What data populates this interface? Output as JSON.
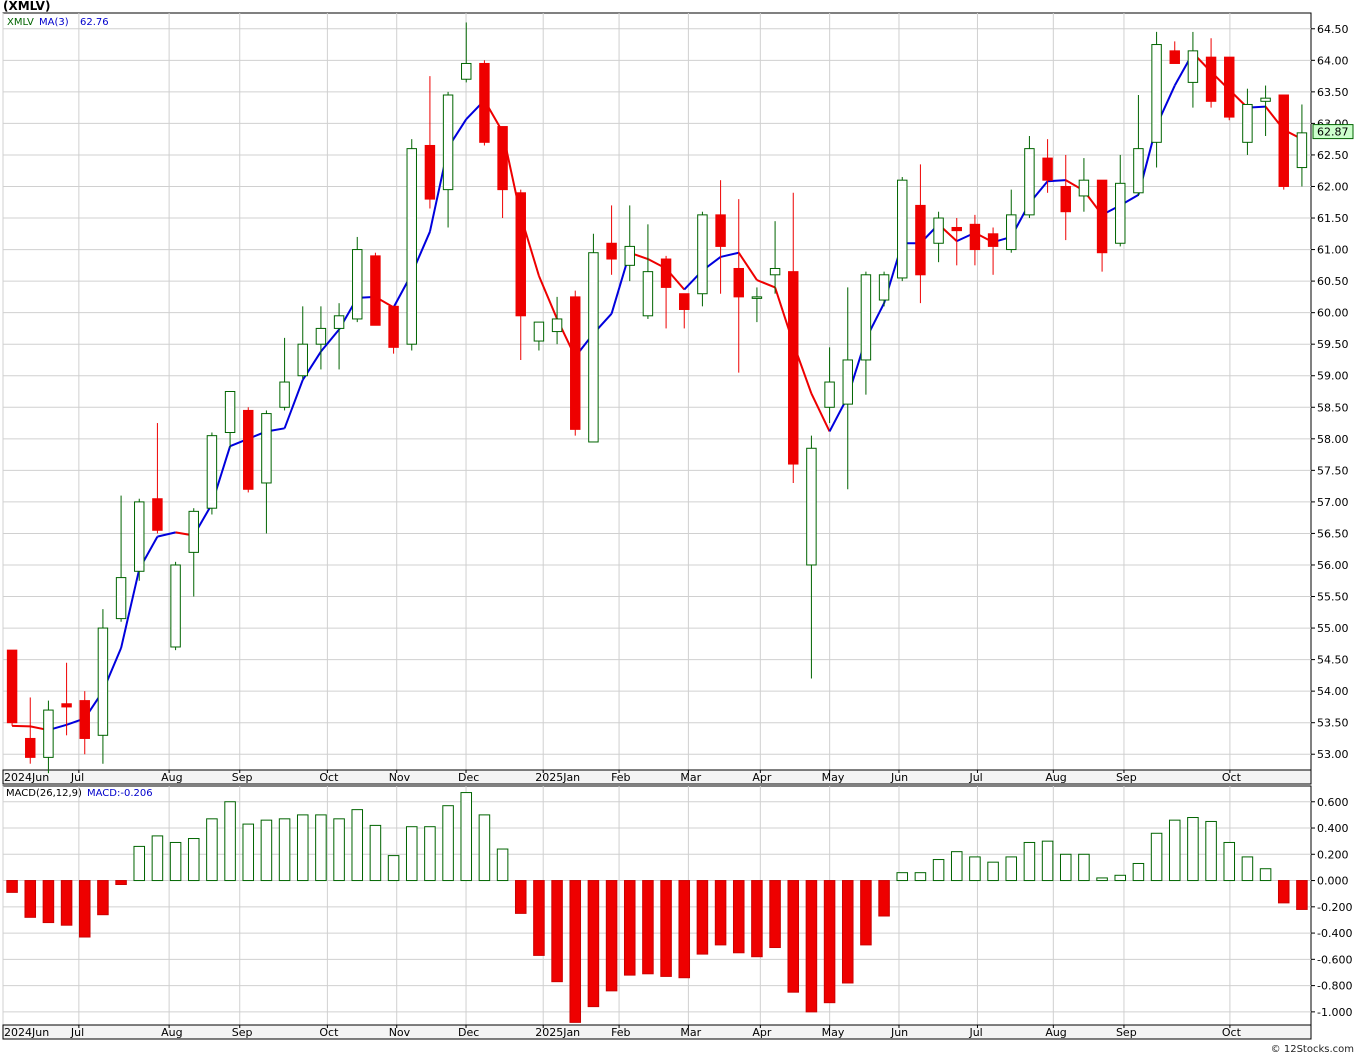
{
  "header": {
    "title": "(XMLV)"
  },
  "credit": "© 12Stocks.com",
  "chart_data": [
    {
      "type": "candlestick",
      "legend": {
        "symbol": "XMLV",
        "ma_label": "MA(3)",
        "ma_value": "62.76"
      },
      "last_price": "62.87",
      "ylim": [
        52.75,
        64.75
      ],
      "y_ticks": [
        "53.00",
        "53.50",
        "54.00",
        "54.50",
        "55.00",
        "55.50",
        "56.00",
        "56.50",
        "57.00",
        "57.50",
        "58.00",
        "58.50",
        "59.00",
        "59.50",
        "60.00",
        "60.50",
        "61.00",
        "61.50",
        "62.00",
        "62.50",
        "63.00",
        "63.50",
        "64.00",
        "64.50"
      ],
      "x_labels": [
        "2024Jun",
        "Jul",
        "Aug",
        "Sep",
        "Oct",
        "Nov",
        "Dec",
        "2025Jan",
        "Feb",
        "Mar",
        "Apr",
        "May",
        "Jun",
        "Jul",
        "Aug",
        "Sep",
        "Oct"
      ],
      "colors": {
        "up": "#006400",
        "down": "#ee0000",
        "ma_up": "#0000dd",
        "ma_down": "#ee0000"
      },
      "candles": [
        {
          "o": 54.65,
          "h": 54.65,
          "l": 53.45,
          "c": 53.5
        },
        {
          "o": 53.25,
          "h": 53.9,
          "l": 52.85,
          "c": 52.95
        },
        {
          "o": 52.95,
          "h": 53.85,
          "l": 52.7,
          "c": 53.7
        },
        {
          "o": 53.8,
          "h": 54.45,
          "l": 53.3,
          "c": 53.75
        },
        {
          "o": 53.85,
          "h": 54.0,
          "l": 53.0,
          "c": 53.25
        },
        {
          "o": 53.3,
          "h": 55.3,
          "l": 52.85,
          "c": 55.0
        },
        {
          "o": 55.15,
          "h": 57.1,
          "l": 55.1,
          "c": 55.8
        },
        {
          "o": 55.9,
          "h": 57.05,
          "l": 55.75,
          "c": 57.0
        },
        {
          "o": 57.05,
          "h": 58.25,
          "l": 56.5,
          "c": 56.55
        },
        {
          "o": 54.7,
          "h": 56.05,
          "l": 54.65,
          "c": 56.0
        },
        {
          "o": 56.2,
          "h": 56.9,
          "l": 55.5,
          "c": 56.85
        },
        {
          "o": 56.9,
          "h": 58.1,
          "l": 56.8,
          "c": 58.05
        },
        {
          "o": 58.1,
          "h": 58.75,
          "l": 57.85,
          "c": 58.75
        },
        {
          "o": 58.45,
          "h": 58.5,
          "l": 57.15,
          "c": 57.2
        },
        {
          "o": 57.3,
          "h": 58.45,
          "l": 56.5,
          "c": 58.4
        },
        {
          "o": 58.5,
          "h": 59.6,
          "l": 58.45,
          "c": 58.9
        },
        {
          "o": 59.0,
          "h": 60.1,
          "l": 58.95,
          "c": 59.5
        },
        {
          "o": 59.5,
          "h": 60.1,
          "l": 59.1,
          "c": 59.75
        },
        {
          "o": 59.75,
          "h": 60.15,
          "l": 59.1,
          "c": 59.95
        },
        {
          "o": 59.9,
          "h": 61.2,
          "l": 59.85,
          "c": 61.0
        },
        {
          "o": 60.9,
          "h": 60.95,
          "l": 59.8,
          "c": 59.8
        },
        {
          "o": 60.1,
          "h": 60.1,
          "l": 59.35,
          "c": 59.45
        },
        {
          "o": 59.5,
          "h": 62.75,
          "l": 59.4,
          "c": 62.6
        },
        {
          "o": 62.65,
          "h": 63.75,
          "l": 61.65,
          "c": 61.8
        },
        {
          "o": 61.95,
          "h": 63.5,
          "l": 61.35,
          "c": 63.45
        },
        {
          "o": 63.7,
          "h": 64.6,
          "l": 63.65,
          "c": 63.95
        },
        {
          "o": 63.95,
          "h": 64.0,
          "l": 62.65,
          "c": 62.7
        },
        {
          "o": 62.95,
          "h": 62.95,
          "l": 61.5,
          "c": 61.95
        },
        {
          "o": 61.9,
          "h": 61.95,
          "l": 59.25,
          "c": 59.95
        },
        {
          "o": 59.55,
          "h": 59.85,
          "l": 59.4,
          "c": 59.85
        },
        {
          "o": 59.7,
          "h": 60.25,
          "l": 59.5,
          "c": 59.9
        },
        {
          "o": 60.25,
          "h": 60.35,
          "l": 58.05,
          "c": 58.15
        },
        {
          "o": 57.95,
          "h": 61.25,
          "l": 57.95,
          "c": 60.95
        },
        {
          "o": 61.1,
          "h": 61.7,
          "l": 60.6,
          "c": 60.85
        },
        {
          "o": 60.75,
          "h": 61.7,
          "l": 60.5,
          "c": 61.05
        },
        {
          "o": 59.95,
          "h": 61.4,
          "l": 59.9,
          "c": 60.65
        },
        {
          "o": 60.85,
          "h": 60.9,
          "l": 59.75,
          "c": 60.4
        },
        {
          "o": 60.3,
          "h": 60.3,
          "l": 59.75,
          "c": 60.05
        },
        {
          "o": 60.3,
          "h": 61.6,
          "l": 60.1,
          "c": 61.55
        },
        {
          "o": 61.55,
          "h": 62.1,
          "l": 60.3,
          "c": 61.05
        },
        {
          "o": 60.7,
          "h": 61.8,
          "l": 59.05,
          "c": 60.25
        },
        {
          "o": 60.25,
          "h": 60.4,
          "l": 59.85,
          "c": 60.25
        },
        {
          "o": 60.6,
          "h": 61.45,
          "l": 60.3,
          "c": 60.7
        },
        {
          "o": 60.65,
          "h": 61.9,
          "l": 57.3,
          "c": 57.6
        },
        {
          "o": 56.0,
          "h": 58.05,
          "l": 54.2,
          "c": 57.85
        },
        {
          "o": 58.5,
          "h": 59.45,
          "l": 58.25,
          "c": 58.9
        },
        {
          "o": 58.55,
          "h": 60.4,
          "l": 57.2,
          "c": 59.25
        },
        {
          "o": 59.25,
          "h": 60.65,
          "l": 58.7,
          "c": 60.6
        },
        {
          "o": 60.2,
          "h": 60.65,
          "l": 60.1,
          "c": 60.6
        },
        {
          "o": 60.55,
          "h": 62.15,
          "l": 60.5,
          "c": 62.1
        },
        {
          "o": 61.7,
          "h": 62.35,
          "l": 60.15,
          "c": 60.6
        },
        {
          "o": 61.1,
          "h": 61.6,
          "l": 60.8,
          "c": 61.5
        },
        {
          "o": 61.35,
          "h": 61.5,
          "l": 60.75,
          "c": 61.3
        },
        {
          "o": 61.4,
          "h": 61.55,
          "l": 60.75,
          "c": 61.0
        },
        {
          "o": 61.25,
          "h": 61.35,
          "l": 60.6,
          "c": 61.05
        },
        {
          "o": 61.0,
          "h": 61.95,
          "l": 60.95,
          "c": 61.55
        },
        {
          "o": 61.55,
          "h": 62.8,
          "l": 61.5,
          "c": 62.6
        },
        {
          "o": 62.45,
          "h": 62.75,
          "l": 61.9,
          "c": 62.1
        },
        {
          "o": 62.0,
          "h": 62.5,
          "l": 61.15,
          "c": 61.6
        },
        {
          "o": 61.85,
          "h": 62.45,
          "l": 61.6,
          "c": 62.1
        },
        {
          "o": 62.1,
          "h": 62.1,
          "l": 60.65,
          "c": 60.95
        },
        {
          "o": 61.1,
          "h": 62.5,
          "l": 61.05,
          "c": 62.05
        },
        {
          "o": 61.9,
          "h": 63.45,
          "l": 61.85,
          "c": 62.6
        },
        {
          "o": 62.7,
          "h": 64.45,
          "l": 62.3,
          "c": 64.25
        },
        {
          "o": 64.15,
          "h": 64.3,
          "l": 63.95,
          "c": 63.95
        },
        {
          "o": 63.65,
          "h": 64.45,
          "l": 63.25,
          "c": 64.15
        },
        {
          "o": 64.05,
          "h": 64.35,
          "l": 63.25,
          "c": 63.35
        },
        {
          "o": 64.05,
          "h": 64.05,
          "l": 63.05,
          "c": 63.1
        },
        {
          "o": 62.7,
          "h": 63.55,
          "l": 62.5,
          "c": 63.3
        },
        {
          "o": 63.35,
          "h": 63.6,
          "l": 62.8,
          "c": 63.4
        },
        {
          "o": 63.45,
          "h": 63.45,
          "l": 61.95,
          "c": 62.0
        },
        {
          "o": 62.3,
          "h": 63.3,
          "l": 62.0,
          "c": 62.85
        }
      ]
    },
    {
      "type": "bar",
      "legend": {
        "label": "MACD(26,12,9)",
        "value_label": "MACD:-0.206"
      },
      "ylim": [
        -1.1,
        0.72
      ],
      "y_ticks": [
        "0.600",
        "0.400",
        "0.200",
        "0.000",
        "-0.200",
        "-0.400",
        "-0.600",
        "-0.800",
        "-1.000"
      ],
      "x_labels": [
        "2024Jun",
        "Jul",
        "Aug",
        "Sep",
        "Oct",
        "Nov",
        "Dec",
        "2025Jan",
        "Feb",
        "Mar",
        "Apr",
        "May",
        "Jun",
        "Jul",
        "Aug",
        "Sep",
        "Oct"
      ],
      "values": [
        -0.09,
        -0.28,
        -0.32,
        -0.34,
        -0.43,
        -0.26,
        -0.03,
        0.26,
        0.34,
        0.29,
        0.32,
        0.47,
        0.6,
        0.43,
        0.46,
        0.47,
        0.5,
        0.5,
        0.47,
        0.54,
        0.42,
        0.19,
        0.41,
        0.41,
        0.57,
        0.67,
        0.5,
        0.24,
        -0.25,
        -0.57,
        -0.77,
        -1.08,
        -0.96,
        -0.84,
        -0.72,
        -0.71,
        -0.73,
        -0.74,
        -0.56,
        -0.49,
        -0.55,
        -0.58,
        -0.51,
        -0.85,
        -1.0,
        -0.93,
        -0.78,
        -0.49,
        -0.27,
        0.06,
        0.06,
        0.16,
        0.22,
        0.18,
        0.14,
        0.18,
        0.29,
        0.3,
        0.2,
        0.2,
        0.02,
        0.04,
        0.13,
        0.36,
        0.46,
        0.48,
        0.45,
        0.29,
        0.18,
        0.09,
        -0.17,
        -0.22
      ]
    }
  ]
}
